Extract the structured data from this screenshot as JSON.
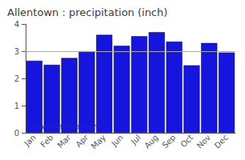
{
  "chart_data": {
    "type": "bar",
    "title": "Allentown : precipitation (inch)",
    "categories": [
      "Jan",
      "Feb",
      "Mar",
      "Apr",
      "May",
      "Jun",
      "Jul",
      "Aug",
      "Sep",
      "Oct",
      "Nov",
      "Dec"
    ],
    "values": [
      2.65,
      2.5,
      2.75,
      3.0,
      3.6,
      3.2,
      3.55,
      3.7,
      3.35,
      2.48,
      3.3,
      2.95
    ],
    "color": "#1515dd",
    "ylim": [
      0,
      4
    ],
    "yticks": [
      0,
      1,
      2,
      3,
      4
    ],
    "grid": false,
    "reference_line": {
      "y": 3.0,
      "color": "#aaaaaa"
    },
    "annotation": "www.allmetsat.com"
  }
}
